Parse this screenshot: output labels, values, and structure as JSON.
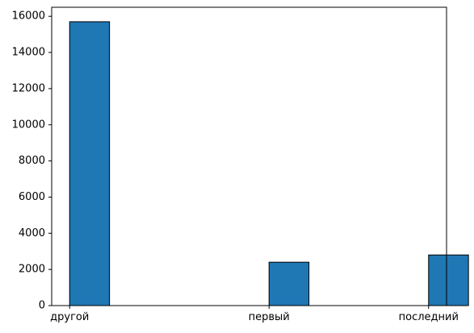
{
  "chart_data": {
    "type": "bar",
    "categories": [
      "другой",
      "первый",
      "последний"
    ],
    "values": [
      15700,
      2400,
      2800
    ],
    "title": "",
    "xlabel": "",
    "ylabel": "",
    "ylim": [
      0,
      16500
    ],
    "yticks": [
      0,
      2000,
      4000,
      6000,
      8000,
      10000,
      12000,
      14000,
      16000
    ],
    "x_positions": [
      0,
      1.25,
      2.25
    ],
    "xlim": [
      -0.1125,
      2.3625
    ],
    "bar_width": 0.25,
    "grid": false,
    "legend": "none",
    "colors": {
      "bar_fill": "#1f77b4",
      "bar_edge": "#000000",
      "axis": "#000000"
    }
  }
}
